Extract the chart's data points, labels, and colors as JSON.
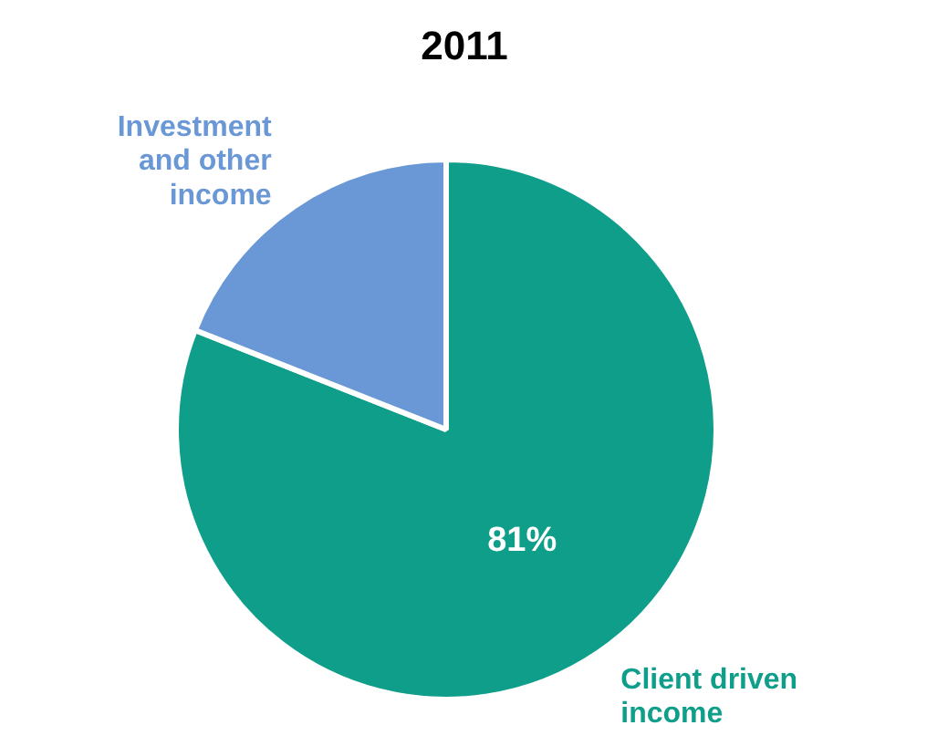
{
  "chart_data": {
    "type": "pie",
    "title": "2011",
    "categories": [
      "Client driven income",
      "Investment and other income"
    ],
    "values": [
      81,
      19
    ],
    "colors": [
      "#0e9e8a",
      "#6a98d6"
    ],
    "value_labels": [
      "81%",
      null
    ]
  }
}
